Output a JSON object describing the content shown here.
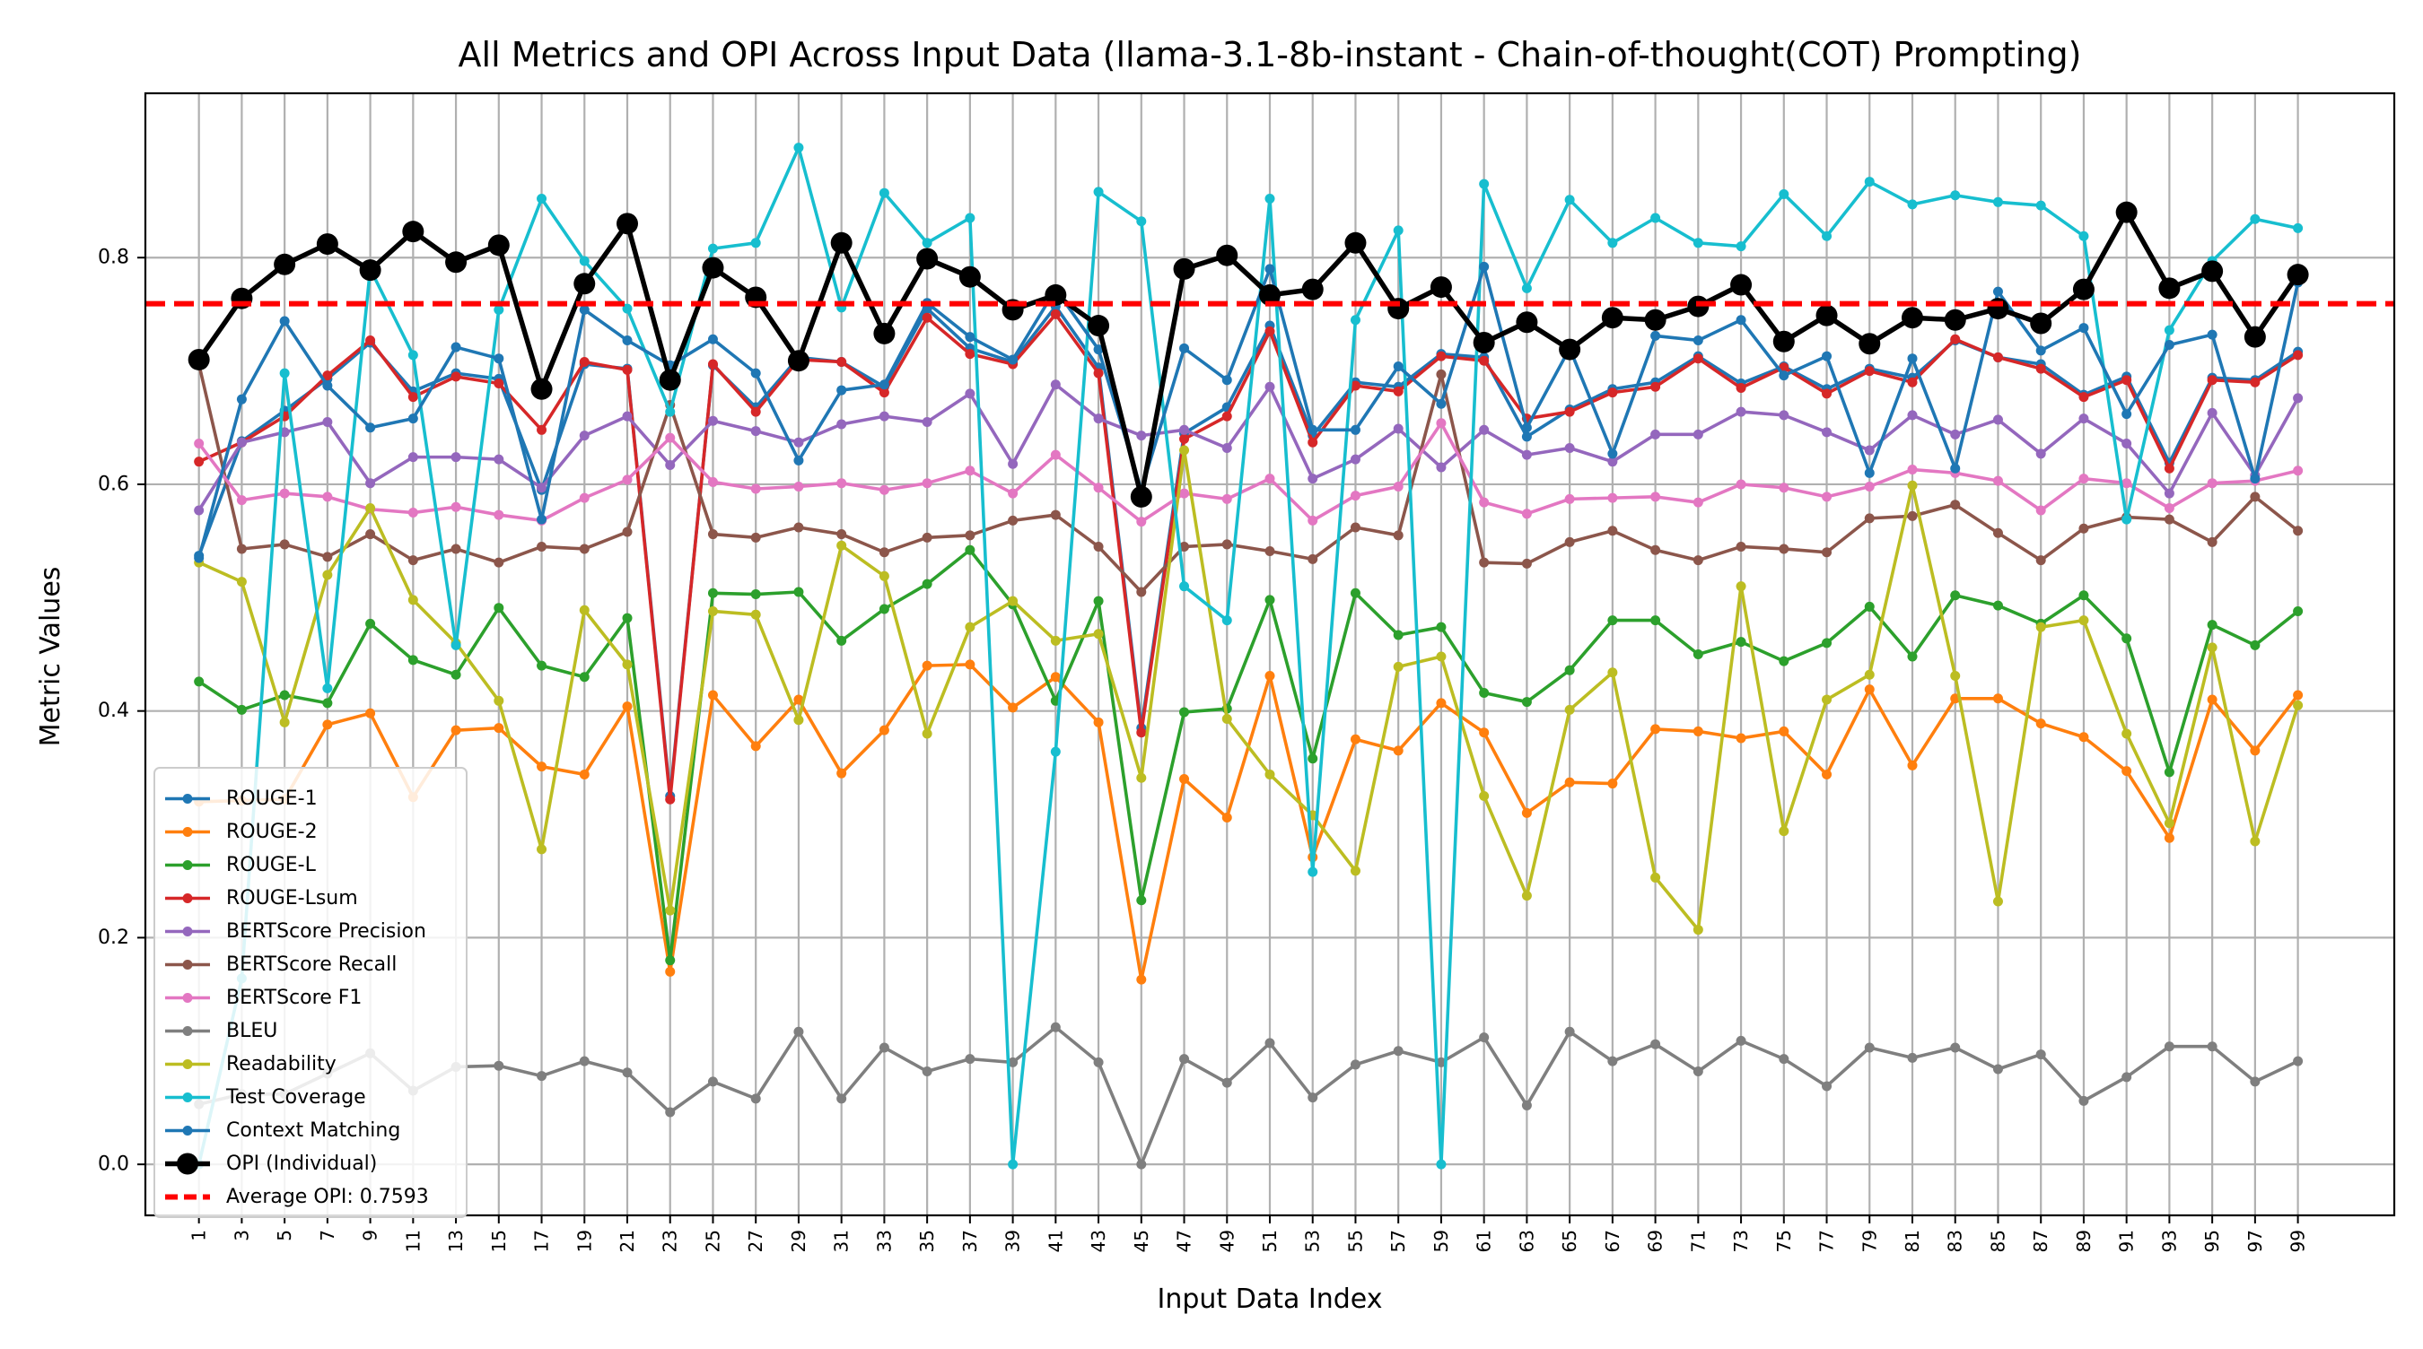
{
  "chart_data": {
    "type": "line",
    "title": "All Metrics and OPI Across Input Data (llama-3.1-8b-instant - Chain-of-thought(COT) Prompting)",
    "xlabel": "Input Data Index",
    "ylabel": "Metric Values",
    "x": [
      1,
      3,
      5,
      7,
      9,
      11,
      13,
      15,
      17,
      19,
      21,
      23,
      25,
      27,
      29,
      31,
      33,
      35,
      37,
      39,
      41,
      43,
      45,
      47,
      49,
      51,
      53,
      55,
      57,
      59,
      61,
      63,
      65,
      67,
      69,
      71,
      73,
      75,
      77,
      79,
      81,
      83,
      85,
      87,
      89,
      91,
      93,
      95,
      97,
      99
    ],
    "xtick_labels": [
      "1",
      "3",
      "5",
      "7",
      "9",
      "11",
      "13",
      "15",
      "17",
      "19",
      "21",
      "23",
      "25",
      "27",
      "29",
      "31",
      "33",
      "35",
      "37",
      "39",
      "41",
      "43",
      "45",
      "47",
      "49",
      "51",
      "53",
      "55",
      "57",
      "59",
      "61",
      "63",
      "65",
      "67",
      "69",
      "71",
      "73",
      "75",
      "77",
      "79",
      "81",
      "83",
      "85",
      "87",
      "89",
      "91",
      "93",
      "95",
      "97",
      "99"
    ],
    "yticks": [
      "0.0",
      "0.2",
      "0.4",
      "0.6",
      "0.8"
    ],
    "xlim": [
      -1.5,
      103.5
    ],
    "ylim": [
      -0.045,
      0.945
    ],
    "grid": true,
    "legend_position": "lower-left",
    "series": [
      {
        "name": "ROUGE-1",
        "color": "#1f77b4",
        "values": [
          0.537,
          0.638,
          0.665,
          0.693,
          0.725,
          0.682,
          0.698,
          0.693,
          0.595,
          0.706,
          0.702,
          0.325,
          0.705,
          0.668,
          0.712,
          0.708,
          0.686,
          0.755,
          0.72,
          0.708,
          0.757,
          0.703,
          0.385,
          0.645,
          0.668,
          0.74,
          0.643,
          0.69,
          0.686,
          0.715,
          0.712,
          0.642,
          0.666,
          0.684,
          0.69,
          0.713,
          0.689,
          0.704,
          0.684,
          0.702,
          0.694,
          0.727,
          0.712,
          0.706,
          0.679,
          0.695,
          0.619,
          0.694,
          0.692,
          0.717
        ]
      },
      {
        "name": "ROUGE-2",
        "color": "#ff7f0e",
        "values": [
          0.32,
          0.321,
          0.322,
          0.388,
          0.398,
          0.324,
          0.383,
          0.385,
          0.351,
          0.344,
          0.404,
          0.17,
          0.414,
          0.369,
          0.41,
          0.345,
          0.383,
          0.44,
          0.441,
          0.403,
          0.43,
          0.39,
          0.163,
          0.34,
          0.306,
          0.431,
          0.271,
          0.375,
          0.365,
          0.407,
          0.381,
          0.31,
          0.337,
          0.336,
          0.384,
          0.382,
          0.376,
          0.382,
          0.344,
          0.419,
          0.352,
          0.411,
          0.411,
          0.389,
          0.377,
          0.347,
          0.288,
          0.41,
          0.365,
          0.414
        ]
      },
      {
        "name": "ROUGE-L",
        "color": "#2ca02c",
        "values": [
          0.426,
          0.401,
          0.414,
          0.407,
          0.477,
          0.445,
          0.432,
          0.491,
          0.44,
          0.43,
          0.482,
          0.18,
          0.504,
          0.503,
          0.505,
          0.462,
          0.49,
          0.512,
          0.542,
          0.494,
          0.409,
          0.497,
          0.233,
          0.399,
          0.402,
          0.498,
          0.358,
          0.504,
          0.467,
          0.474,
          0.416,
          0.408,
          0.436,
          0.48,
          0.48,
          0.45,
          0.461,
          0.444,
          0.46,
          0.492,
          0.448,
          0.502,
          0.493,
          0.477,
          0.502,
          0.464,
          0.346,
          0.476,
          0.458,
          0.488
        ]
      },
      {
        "name": "ROUGE-Lsum",
        "color": "#d62728",
        "values": [
          0.62,
          0.637,
          0.66,
          0.696,
          0.727,
          0.677,
          0.695,
          0.689,
          0.648,
          0.708,
          0.701,
          0.322,
          0.706,
          0.664,
          0.71,
          0.708,
          0.681,
          0.747,
          0.715,
          0.706,
          0.75,
          0.698,
          0.381,
          0.64,
          0.66,
          0.735,
          0.637,
          0.687,
          0.682,
          0.713,
          0.709,
          0.658,
          0.664,
          0.681,
          0.686,
          0.711,
          0.685,
          0.703,
          0.68,
          0.7,
          0.69,
          0.728,
          0.712,
          0.702,
          0.677,
          0.692,
          0.614,
          0.692,
          0.69,
          0.714
        ]
      },
      {
        "name": "BERTScore Precision",
        "color": "#9467bd",
        "values": [
          0.577,
          0.637,
          0.646,
          0.655,
          0.601,
          0.624,
          0.624,
          0.622,
          0.597,
          0.643,
          0.66,
          0.617,
          0.656,
          0.647,
          0.637,
          0.653,
          0.66,
          0.655,
          0.68,
          0.618,
          0.688,
          0.658,
          0.643,
          0.648,
          0.632,
          0.686,
          0.605,
          0.622,
          0.649,
          0.615,
          0.648,
          0.626,
          0.632,
          0.62,
          0.644,
          0.644,
          0.664,
          0.661,
          0.646,
          0.63,
          0.661,
          0.644,
          0.657,
          0.627,
          0.658,
          0.636,
          0.592,
          0.663,
          0.608,
          0.676
        ]
      },
      {
        "name": "BERTScore Recall",
        "color": "#8c564b",
        "values": [
          0.706,
          0.543,
          0.547,
          0.536,
          0.556,
          0.533,
          0.543,
          0.531,
          0.545,
          0.543,
          0.558,
          0.67,
          0.556,
          0.553,
          0.562,
          0.556,
          0.54,
          0.553,
          0.555,
          0.568,
          0.573,
          0.545,
          0.505,
          0.545,
          0.547,
          0.541,
          0.534,
          0.562,
          0.555,
          0.697,
          0.531,
          0.53,
          0.549,
          0.559,
          0.542,
          0.533,
          0.545,
          0.543,
          0.54,
          0.57,
          0.572,
          0.582,
          0.557,
          0.533,
          0.561,
          0.571,
          0.569,
          0.549,
          0.589,
          0.559
        ]
      },
      {
        "name": "BERTScore F1",
        "color": "#e377c2",
        "values": [
          0.636,
          0.586,
          0.592,
          0.589,
          0.578,
          0.575,
          0.58,
          0.573,
          0.568,
          0.588,
          0.604,
          0.641,
          0.602,
          0.596,
          0.598,
          0.601,
          0.595,
          0.601,
          0.612,
          0.592,
          0.626,
          0.597,
          0.567,
          0.592,
          0.587,
          0.605,
          0.568,
          0.59,
          0.598,
          0.654,
          0.584,
          0.574,
          0.587,
          0.588,
          0.589,
          0.584,
          0.6,
          0.597,
          0.589,
          0.598,
          0.613,
          0.61,
          0.603,
          0.577,
          0.605,
          0.601,
          0.579,
          0.601,
          0.603,
          0.612
        ]
      },
      {
        "name": "BLEU",
        "color": "#7f7f7f",
        "values": [
          0.053,
          0.062,
          0.062,
          0.08,
          0.098,
          0.065,
          0.086,
          0.087,
          0.078,
          0.091,
          0.081,
          0.046,
          0.073,
          0.058,
          0.117,
          0.058,
          0.103,
          0.082,
          0.093,
          0.09,
          0.121,
          0.09,
          0.0,
          0.093,
          0.072,
          0.107,
          0.059,
          0.088,
          0.1,
          0.09,
          0.112,
          0.052,
          0.117,
          0.091,
          0.106,
          0.082,
          0.109,
          0.093,
          0.069,
          0.103,
          0.094,
          0.103,
          0.084,
          0.097,
          0.056,
          0.077,
          0.104,
          0.104,
          0.073,
          0.091
        ]
      },
      {
        "name": "Readability",
        "color": "#bcbd22",
        "values": [
          0.531,
          0.514,
          0.39,
          0.52,
          0.579,
          0.498,
          0.46,
          0.409,
          0.278,
          0.489,
          0.441,
          0.224,
          0.488,
          0.485,
          0.392,
          0.546,
          0.519,
          0.38,
          0.474,
          0.497,
          0.462,
          0.468,
          0.341,
          0.63,
          0.393,
          0.344,
          0.308,
          0.259,
          0.439,
          0.448,
          0.325,
          0.237,
          0.401,
          0.434,
          0.253,
          0.207,
          0.51,
          0.294,
          0.41,
          0.432,
          0.599,
          0.431,
          0.232,
          0.474,
          0.48,
          0.38,
          0.301,
          0.456,
          0.285,
          0.405
        ]
      },
      {
        "name": "Test Coverage",
        "color": "#17becf",
        "values": [
          0.0,
          0.164,
          0.698,
          0.42,
          0.79,
          0.714,
          0.458,
          0.754,
          0.852,
          0.797,
          0.755,
          0.664,
          0.808,
          0.813,
          0.897,
          0.756,
          0.857,
          0.813,
          0.835,
          0.0,
          0.364,
          0.858,
          0.832,
          0.51,
          0.48,
          0.852,
          0.258,
          0.745,
          0.824,
          0.0,
          0.865,
          0.773,
          0.851,
          0.813,
          0.835,
          0.813,
          0.81,
          0.856,
          0.819,
          0.867,
          0.847,
          0.855,
          0.849,
          0.846,
          0.819,
          0.569,
          0.736,
          0.797,
          0.834,
          0.826
        ]
      },
      {
        "name": "Context Matching",
        "color": "#1f77b4",
        "values": [
          0.535,
          0.675,
          0.744,
          0.687,
          0.65,
          0.658,
          0.721,
          0.711,
          0.569,
          0.754,
          0.727,
          0.705,
          0.728,
          0.698,
          0.621,
          0.683,
          0.688,
          0.76,
          0.73,
          0.71,
          0.772,
          0.719,
          0.595,
          0.72,
          0.692,
          0.79,
          0.648,
          0.648,
          0.704,
          0.671,
          0.792,
          0.65,
          0.72,
          0.627,
          0.731,
          0.727,
          0.745,
          0.696,
          0.713,
          0.61,
          0.711,
          0.614,
          0.77,
          0.718,
          0.738,
          0.662,
          0.723,
          0.732,
          0.605,
          0.778
        ]
      },
      {
        "name": "OPI (Individual)",
        "color": "#000000",
        "values": [
          0.71,
          0.764,
          0.794,
          0.812,
          0.789,
          0.823,
          0.796,
          0.811,
          0.684,
          0.777,
          0.83,
          0.692,
          0.791,
          0.765,
          0.709,
          0.813,
          0.733,
          0.799,
          0.783,
          0.754,
          0.767,
          0.74,
          0.589,
          0.79,
          0.802,
          0.767,
          0.772,
          0.813,
          0.755,
          0.774,
          0.725,
          0.743,
          0.719,
          0.747,
          0.745,
          0.757,
          0.776,
          0.726,
          0.749,
          0.724,
          0.747,
          0.745,
          0.755,
          0.742,
          0.772,
          0.84,
          0.773,
          0.788,
          0.73,
          0.785
        ]
      }
    ],
    "reference_line": {
      "label": "Average OPI: 0.7593",
      "value": 0.7593,
      "color": "#ff0000",
      "style": "dashed"
    }
  }
}
